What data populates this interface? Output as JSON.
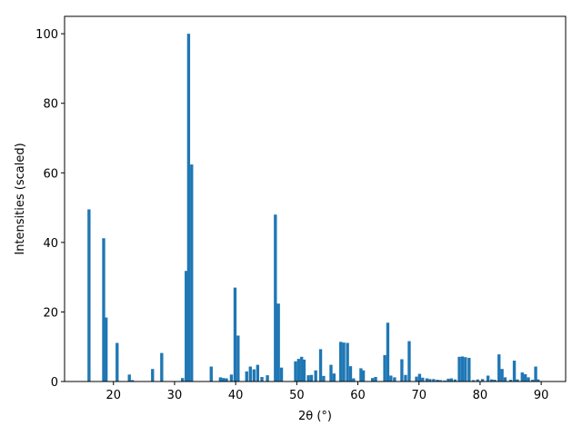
{
  "chart_data": {
    "type": "bar",
    "title": "",
    "xlabel": "2θ (°)",
    "ylabel": "Intensities (scaled)",
    "xlim": [
      12,
      94
    ],
    "ylim": [
      0,
      105
    ],
    "xticks": [
      20,
      30,
      40,
      50,
      60,
      70,
      80,
      90
    ],
    "yticks": [
      0,
      20,
      40,
      60,
      80,
      100
    ],
    "grid": false,
    "bar_width": 0.5,
    "bar_color": "#1f77b4",
    "x": [
      16.0,
      18.4,
      18.8,
      20.6,
      22.6,
      23.1,
      26.4,
      27.9,
      31.3,
      31.9,
      32.3,
      32.8,
      36.0,
      37.5,
      38.0,
      38.5,
      39.3,
      39.9,
      40.4,
      41.8,
      42.4,
      43.0,
      43.6,
      44.3,
      45.2,
      46.5,
      47.0,
      47.5,
      49.8,
      50.3,
      50.8,
      51.2,
      51.9,
      52.4,
      53.1,
      53.9,
      54.4,
      55.6,
      56.1,
      57.2,
      57.7,
      58.3,
      58.8,
      59.3,
      60.5,
      60.9,
      62.4,
      62.9,
      64.4,
      64.9,
      65.4,
      66.0,
      67.2,
      67.8,
      68.4,
      69.6,
      70.1,
      70.6,
      71.3,
      71.8,
      72.4,
      73.0,
      73.5,
      74.2,
      74.8,
      75.3,
      75.9,
      76.6,
      77.1,
      77.6,
      78.2,
      78.9,
      79.6,
      80.4,
      81.3,
      81.9,
      82.4,
      83.1,
      83.6,
      84.1,
      85.0,
      85.6,
      86.1,
      86.9,
      87.4,
      87.9,
      88.6,
      89.1,
      89.5
    ],
    "values": [
      49.5,
      41.2,
      18.4,
      11.1,
      2.0,
      0.4,
      3.6,
      8.2,
      1.0,
      31.8,
      100.0,
      62.4,
      4.3,
      1.2,
      1.0,
      0.9,
      2.0,
      27.0,
      13.2,
      2.9,
      4.3,
      3.5,
      4.8,
      1.3,
      1.8,
      48.0,
      22.4,
      4.0,
      5.8,
      6.5,
      7.1,
      6.3,
      1.8,
      1.9,
      3.2,
      9.3,
      1.6,
      4.8,
      2.3,
      11.4,
      11.2,
      11.1,
      4.4,
      0.9,
      3.8,
      3.2,
      1.0,
      1.3,
      7.6,
      16.9,
      1.7,
      1.2,
      6.4,
      1.9,
      11.6,
      1.4,
      2.2,
      1.1,
      0.9,
      0.7,
      0.7,
      0.5,
      0.4,
      0.3,
      0.8,
      0.9,
      0.6,
      7.1,
      7.2,
      7.0,
      6.8,
      0.4,
      0.6,
      0.7,
      1.7,
      0.6,
      0.5,
      7.8,
      3.6,
      1.2,
      0.5,
      6.0,
      0.6,
      2.6,
      2.1,
      1.2,
      0.5,
      4.3,
      0.6
    ]
  }
}
